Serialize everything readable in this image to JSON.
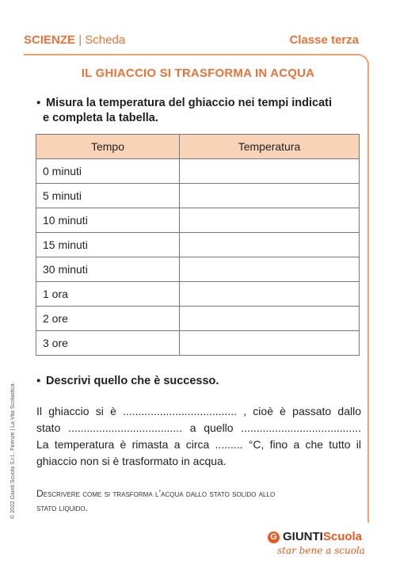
{
  "header": {
    "subject": "SCIENZE",
    "separator": "|",
    "type": "Scheda",
    "grade": "Classe terza"
  },
  "title": "IL GHIACCIO SI TRASFORMA IN ACQUA",
  "question1": {
    "bullet": "▪",
    "line1": "Misura la temperatura del ghiaccio nei tempi indicati",
    "line2": "e completa la tabella."
  },
  "table": {
    "headers": [
      "Tempo",
      "Temperatura"
    ],
    "rows": [
      {
        "time": "0 minuti",
        "temp": ""
      },
      {
        "time": "5 minuti",
        "temp": ""
      },
      {
        "time": "10 minuti",
        "temp": ""
      },
      {
        "time": "15 minuti",
        "temp": ""
      },
      {
        "time": "30 minuti",
        "temp": ""
      },
      {
        "time": "1 ora",
        "temp": ""
      },
      {
        "time": "2 ore",
        "temp": ""
      },
      {
        "time": "3 ore",
        "temp": ""
      }
    ]
  },
  "question2": {
    "bullet": "▪",
    "text": "Descrivi quello che è successo."
  },
  "paragraph": [
    "Il ghiaccio si è ..................................... , cioè è passato dallo",
    "stato ..................................... a quello .......................................",
    "La temperatura è rimasta a circa ......... °C, fino a che tutto il",
    "ghiaccio non si è trasformato in acqua."
  ],
  "objective": {
    "line1": "Descrivere come si trasforma l’acqua dallo stato solido allo",
    "line2": "stato liquido."
  },
  "copyright": "© 2022 Giunti Scuola S.r.l., Firenze | La Vita Scolastica",
  "logo": {
    "mark": "G",
    "brand": "GIUNTI",
    "brand_accent": "Scuola",
    "tagline": "star bene a scuola"
  },
  "colors": {
    "accent": "#e8743a",
    "header_fill": "#f8d3b8"
  }
}
